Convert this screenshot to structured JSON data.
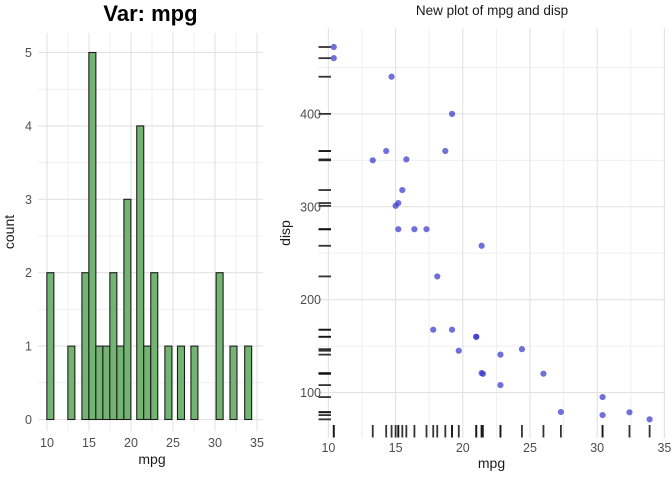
{
  "figure": {
    "background": "#ffffff"
  },
  "styles": {
    "grid_major": "#e2e2e2",
    "grid_minor": "#efefef",
    "tick_label_color": "#4d4d4d",
    "axis_title_color": "#1a1a1a",
    "title_color": "#000000",
    "bar_fill": "#74b473",
    "bar_stroke": "#1c1c1c",
    "point_color": "#3333cc",
    "point_opacity": 0.7,
    "rug_color": "#111111"
  },
  "chart_data": [
    {
      "type": "bar",
      "subtype": "histogram",
      "title": "Var: mpg",
      "xlabel": "mpg",
      "ylabel": "count",
      "x_ticks": [
        10,
        15,
        20,
        25,
        30,
        35
      ],
      "x_minor": [
        12.5,
        17.5,
        22.5,
        27.5,
        32.5
      ],
      "y_ticks": [
        0,
        1,
        2,
        3,
        4,
        5
      ],
      "y_minor": [
        0.5,
        1.5,
        2.5,
        3.5,
        4.5
      ],
      "xlim": [
        9.2,
        35.2
      ],
      "ylim": [
        0,
        5.25
      ],
      "grid": "on",
      "legend": "none",
      "binwidth": 0.8333,
      "bins": [
        {
          "center": 10.4,
          "count": 2
        },
        {
          "center": 12.9,
          "count": 1
        },
        {
          "center": 14.57,
          "count": 2
        },
        {
          "center": 15.4,
          "count": 5
        },
        {
          "center": 16.23,
          "count": 1
        },
        {
          "center": 17.07,
          "count": 1
        },
        {
          "center": 17.9,
          "count": 2
        },
        {
          "center": 18.73,
          "count": 1
        },
        {
          "center": 19.57,
          "count": 3
        },
        {
          "center": 21.1,
          "count": 4
        },
        {
          "center": 21.93,
          "count": 1
        },
        {
          "center": 22.77,
          "count": 2
        },
        {
          "center": 24.45,
          "count": 1
        },
        {
          "center": 25.95,
          "count": 1
        },
        {
          "center": 27.55,
          "count": 1
        },
        {
          "center": 30.55,
          "count": 2
        },
        {
          "center": 32.2,
          "count": 1
        },
        {
          "center": 33.95,
          "count": 1
        }
      ]
    },
    {
      "type": "scatter",
      "title": "New plot of mpg and disp",
      "xlabel": "mpg",
      "ylabel": "disp",
      "x_ticks": [
        10,
        15,
        20,
        25,
        30,
        35
      ],
      "x_minor": [
        12.5,
        17.5,
        22.5,
        27.5,
        32.5
      ],
      "y_ticks": [
        100,
        200,
        300,
        400
      ],
      "y_minor": [
        150,
        250,
        350,
        450
      ],
      "xlim": [
        9.2,
        35.2
      ],
      "ylim": [
        51,
        492
      ],
      "grid": "on",
      "legend": "none",
      "rug": "both-axes",
      "points": [
        [
          21.0,
          160
        ],
        [
          21.0,
          160
        ],
        [
          22.8,
          108
        ],
        [
          21.4,
          258
        ],
        [
          18.7,
          360
        ],
        [
          18.1,
          225
        ],
        [
          14.3,
          360
        ],
        [
          24.4,
          146.7
        ],
        [
          22.8,
          140.8
        ],
        [
          19.2,
          167.6
        ],
        [
          17.8,
          167.6
        ],
        [
          16.4,
          275.8
        ],
        [
          17.3,
          275.8
        ],
        [
          15.2,
          275.8
        ],
        [
          10.4,
          472
        ],
        [
          10.4,
          460
        ],
        [
          14.7,
          440
        ],
        [
          32.4,
          78.7
        ],
        [
          30.4,
          75.7
        ],
        [
          33.9,
          71.1
        ],
        [
          21.5,
          120.1
        ],
        [
          15.5,
          318
        ],
        [
          15.2,
          304
        ],
        [
          13.3,
          350
        ],
        [
          19.2,
          400
        ],
        [
          27.3,
          79
        ],
        [
          26.0,
          120.3
        ],
        [
          30.4,
          95.1
        ],
        [
          15.8,
          351
        ],
        [
          19.7,
          145
        ],
        [
          15.0,
          301
        ],
        [
          21.4,
          121
        ]
      ]
    }
  ]
}
